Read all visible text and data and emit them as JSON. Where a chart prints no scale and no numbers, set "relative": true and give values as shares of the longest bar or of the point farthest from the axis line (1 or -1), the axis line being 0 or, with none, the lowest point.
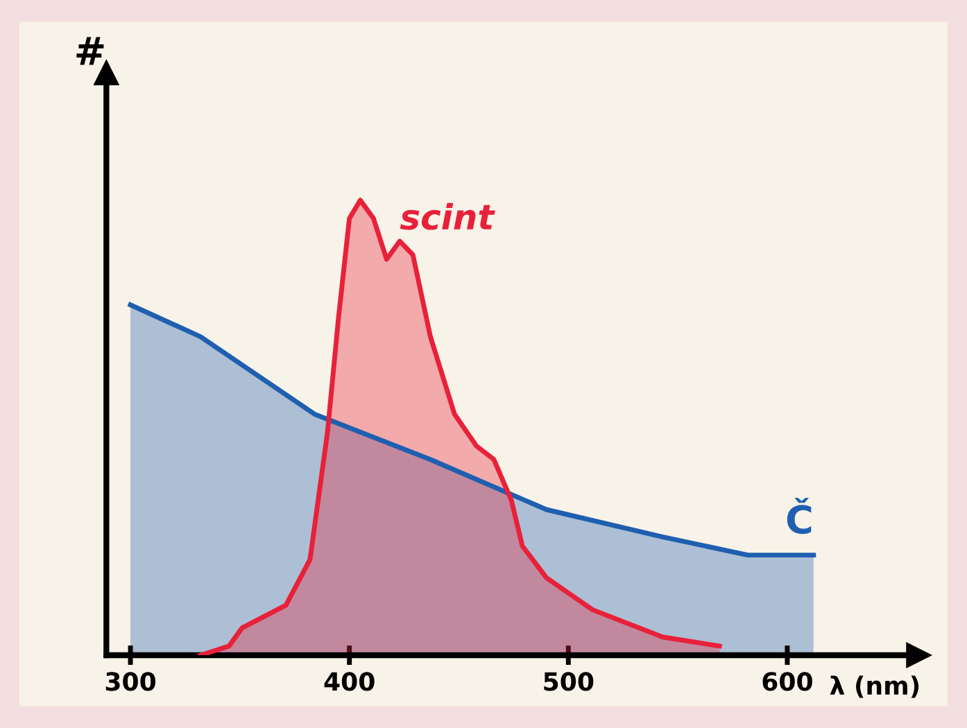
{
  "chart_data": {
    "type": "area",
    "relative": true,
    "ylabel": "#",
    "xlabel": "λ (nm)",
    "xlim": [
      289,
      660
    ],
    "xticks": [
      300,
      400,
      500,
      600
    ],
    "grid": false,
    "legend": false,
    "series": [
      {
        "name": "Č",
        "color": "#1f5fb0",
        "x": [
          300,
          332,
          384,
          437,
          490,
          543,
          582,
          612
        ],
        "values": [
          0.77,
          0.7,
          0.53,
          0.43,
          0.32,
          0.26,
          0.22,
          0.22
        ]
      },
      {
        "name": "scint",
        "color": "#e8213a",
        "x": [
          332,
          345,
          351,
          371,
          382,
          390,
          395,
          400,
          405,
          411,
          417,
          423,
          429,
          437,
          448,
          458,
          466,
          474,
          479,
          490,
          511,
          543,
          569
        ],
        "values": [
          0,
          0.02,
          0.06,
          0.11,
          0.21,
          0.49,
          0.74,
          0.96,
          1.0,
          0.96,
          0.87,
          0.91,
          0.88,
          0.7,
          0.53,
          0.46,
          0.43,
          0.34,
          0.24,
          0.17,
          0.1,
          0.04,
          0.02
        ]
      }
    ]
  }
}
